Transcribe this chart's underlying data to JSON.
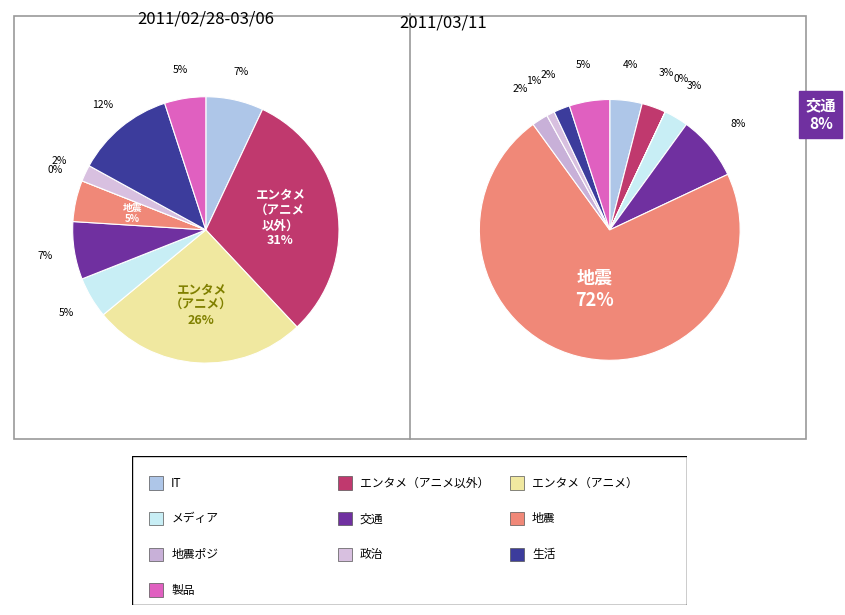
{
  "title1": "2011/02/28-03/06",
  "title2": "2011/03/11",
  "categories": [
    "IT",
    "エンタメ（アニメ以外）",
    "エンタメ（アニメ）",
    "メディア",
    "交通",
    "地震",
    "地震ポジ",
    "政治",
    "生活",
    "製品"
  ],
  "colors": [
    "#aec6e8",
    "#c0396e",
    "#f0e8a0",
    "#c8eef5",
    "#7030a0",
    "#f08878",
    "#c8b0d8",
    "#d8c0e0",
    "#3c3c9c",
    "#e060c0"
  ],
  "pie1_values": [
    7,
    31,
    26,
    5,
    7,
    5,
    0,
    2,
    12,
    5
  ],
  "pie2_values": [
    4,
    3,
    0,
    3,
    8,
    72,
    2,
    1,
    2,
    5
  ],
  "legend_labels": [
    "IT",
    "エンタメ（アニメ以外）",
    "エンタメ（アニメ）",
    "メディア",
    "交通",
    "地震",
    "地震ポジ",
    "政治",
    "生活",
    "製品"
  ],
  "background_color": "#ffffff",
  "label1_inner": [
    {
      "idx": 1,
      "text": "エンタメ\n（アニメ\n以外）\n31%",
      "color": "white",
      "fontsize": 9
    },
    {
      "idx": 2,
      "text": "エンタメ\n（アニメ）\n26%",
      "color": "#808000",
      "fontsize": 9
    },
    {
      "idx": 5,
      "text": "地震\n5%",
      "color": "white",
      "fontsize": 7
    }
  ],
  "label2_inner": [
    {
      "idx": 5,
      "text": "地震\n72%",
      "color": "white",
      "fontsize": 13
    }
  ],
  "koutu_box_text": "交通\n8%",
  "koutu_box_color": "#7030a0"
}
